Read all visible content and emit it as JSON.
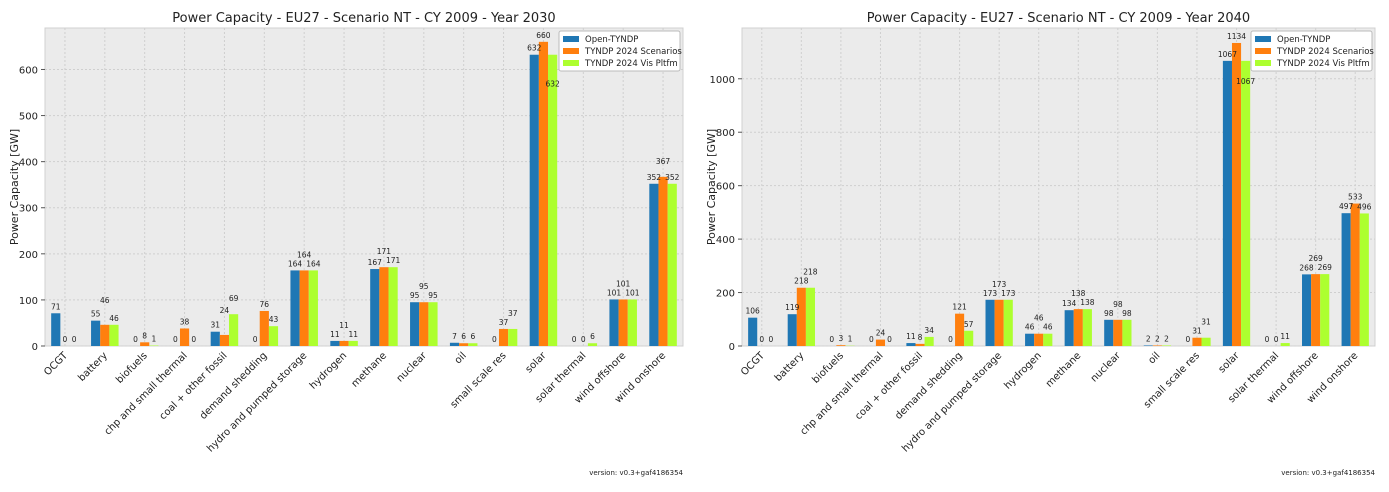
{
  "colors": {
    "Open-TYNDP": "#1f77b4",
    "TYNDP 2024 Scenarios": "#ff7f0e",
    "TYNDP 2024 Vis Pltfm": "#adff2f",
    "background": "#ebebeb",
    "grid": "#cfcfcf"
  },
  "chart_data": [
    {
      "type": "bar",
      "title": "Power Capacity - EU27 - Scenario NT - CY 2009 - Year 2030",
      "ylabel": "Power Capacity [GW]",
      "xlabel": "",
      "ylim": [
        0,
        690
      ],
      "yticks": [
        0,
        100,
        200,
        300,
        400,
        500,
        600
      ],
      "grid": true,
      "legend": "top-right",
      "footer": "version: v0.3+gaf4186354",
      "categories": [
        "OCGT",
        "battery",
        "biofuels",
        "chp and small thermal",
        "coal + other fossil",
        "demand shedding",
        "hydro and pumped storage",
        "hydrogen",
        "methane",
        "nuclear",
        "oil",
        "small scale res",
        "solar",
        "solar thermal",
        "wind offshore",
        "wind onshore"
      ],
      "series": [
        {
          "name": "Open-TYNDP",
          "values": [
            71,
            55,
            0,
            0,
            31,
            0,
            164,
            11,
            167,
            95,
            7,
            0,
            632,
            0,
            101,
            352
          ]
        },
        {
          "name": "TYNDP 2024 Scenarios",
          "values": [
            0,
            46,
            8,
            38,
            24,
            76,
            164,
            11,
            171,
            95,
            6,
            37,
            660,
            0,
            101,
            367
          ]
        },
        {
          "name": "TYNDP 2024 Vis Pltfm",
          "values": [
            0,
            46,
            1,
            0,
            69,
            43,
            164,
            11,
            171,
            95,
            6,
            37,
            632,
            6,
            101,
            352
          ]
        }
      ]
    },
    {
      "type": "bar",
      "title": "Power Capacity - EU27 - Scenario NT - CY 2009 - Year 2040",
      "ylabel": "Power Capacity [GW]",
      "xlabel": "",
      "ylim": [
        0,
        1190
      ],
      "yticks": [
        0,
        200,
        400,
        600,
        800,
        1000
      ],
      "grid": true,
      "legend": "top-right",
      "footer": "version: v0.3+gaf4186354",
      "categories": [
        "OCGT",
        "battery",
        "biofuels",
        "chp and small thermal",
        "coal + other fossil",
        "demand shedding",
        "hydro and pumped storage",
        "hydrogen",
        "methane",
        "nuclear",
        "oil",
        "small scale res",
        "solar",
        "solar thermal",
        "wind offshore",
        "wind onshore"
      ],
      "series": [
        {
          "name": "Open-TYNDP",
          "values": [
            106,
            119,
            0,
            0,
            11,
            0,
            173,
            46,
            134,
            98,
            2,
            0,
            1067,
            0,
            268,
            497
          ]
        },
        {
          "name": "TYNDP 2024 Scenarios",
          "values": [
            0,
            218,
            3,
            24,
            8,
            121,
            173,
            46,
            138,
            98,
            2,
            31,
            1134,
            0,
            269,
            533
          ]
        },
        {
          "name": "TYNDP 2024 Vis Pltfm",
          "values": [
            0,
            218,
            1,
            0,
            34,
            57,
            173,
            46,
            138,
            98,
            2,
            31,
            1067,
            11,
            269,
            496
          ]
        }
      ]
    }
  ]
}
